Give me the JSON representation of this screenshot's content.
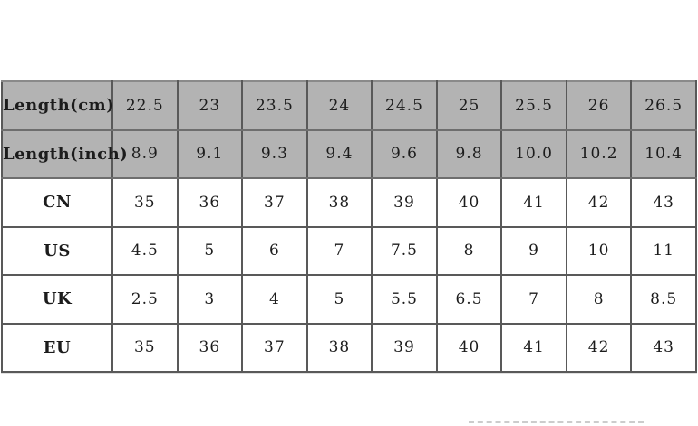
{
  "page": {
    "background": "#ffffff"
  },
  "colors": {
    "shaded_row_bg": "#b3b3b3",
    "grid_line": "#595959",
    "outer_top_border": "#8a8a8a",
    "text": "#1c1c1c",
    "dashed_divider": "#cccccc"
  },
  "chart_data": {
    "type": "table",
    "title": "",
    "description_rows_shaded": [
      "Length(cm)",
      "Length(inch)"
    ],
    "rows": [
      {
        "label": "Length(cm)",
        "shaded": true,
        "values": [
          "22.5",
          "23",
          "23.5",
          "24",
          "24.5",
          "25",
          "25.5",
          "26",
          "26.5"
        ]
      },
      {
        "label": "Length(inch)",
        "shaded": true,
        "values": [
          "8.9",
          "9.1",
          "9.3",
          "9.4",
          "9.6",
          "9.8",
          "10.0",
          "10.2",
          "10.4"
        ]
      },
      {
        "label": "CN",
        "shaded": false,
        "values": [
          "35",
          "36",
          "37",
          "38",
          "39",
          "40",
          "41",
          "42",
          "43"
        ]
      },
      {
        "label": "US",
        "shaded": false,
        "values": [
          "4.5",
          "5",
          "6",
          "7",
          "7.5",
          "8",
          "9",
          "10",
          "11"
        ]
      },
      {
        "label": "UK",
        "shaded": false,
        "values": [
          "2.5",
          "3",
          "4",
          "5",
          "5.5",
          "6.5",
          "7",
          "8",
          "8.5"
        ]
      },
      {
        "label": "EU",
        "shaded": false,
        "values": [
          "35",
          "36",
          "37",
          "38",
          "39",
          "40",
          "41",
          "42",
          "43"
        ]
      }
    ]
  }
}
